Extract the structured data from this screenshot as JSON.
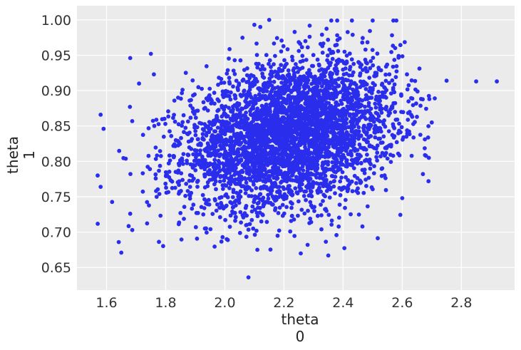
{
  "chart_data": {
    "type": "scatter",
    "title": "",
    "xlabel_lines": [
      "theta",
      "0"
    ],
    "ylabel_lines": [
      "theta",
      "1"
    ],
    "xlim": [
      1.5,
      2.98
    ],
    "ylim": [
      0.618,
      1.02
    ],
    "xticks": [
      1.6,
      1.8,
      2.0,
      2.2,
      2.4,
      2.6,
      2.8
    ],
    "xtick_labels": [
      "1.6",
      "1.8",
      "2.0",
      "2.2",
      "2.4",
      "2.6",
      "2.8"
    ],
    "yticks": [
      0.65,
      0.7,
      0.75,
      0.8,
      0.85,
      0.9,
      0.95,
      1.0
    ],
    "ytick_labels": [
      "0.65",
      "0.70",
      "0.75",
      "0.80",
      "0.85",
      "0.90",
      "0.95",
      "1.00"
    ],
    "grid": true,
    "background_color": "#ebebeb",
    "grid_color": "#ffffff",
    "marker_color": "#2a2eec",
    "bulk_distribution": {
      "n_points": 4000,
      "x_mean": 2.22,
      "x_sd": 0.18,
      "y_mean": 0.838,
      "y_sd": 0.052,
      "correlation": 0.28
    },
    "notable_points": [
      {
        "x": 2.92,
        "y": 0.913
      },
      {
        "x": 2.85,
        "y": 0.913
      },
      {
        "x": 2.75,
        "y": 0.914
      },
      {
        "x": 2.71,
        "y": 0.889
      },
      {
        "x": 2.7,
        "y": 0.855
      },
      {
        "x": 2.69,
        "y": 0.805
      },
      {
        "x": 2.67,
        "y": 0.782
      },
      {
        "x": 2.6,
        "y": 0.748
      },
      {
        "x": 2.15,
        "y": 1.0
      },
      {
        "x": 2.36,
        "y": 0.999
      },
      {
        "x": 2.38,
        "y": 0.999
      },
      {
        "x": 2.43,
        "y": 0.999
      },
      {
        "x": 2.5,
        "y": 0.999
      },
      {
        "x": 2.57,
        "y": 0.999
      },
      {
        "x": 2.58,
        "y": 0.999
      },
      {
        "x": 2.1,
        "y": 0.993
      },
      {
        "x": 2.12,
        "y": 0.99
      },
      {
        "x": 2.08,
        "y": 0.636
      },
      {
        "x": 1.65,
        "y": 0.671
      },
      {
        "x": 2.35,
        "y": 0.667
      },
      {
        "x": 2.28,
        "y": 0.682
      },
      {
        "x": 2.11,
        "y": 0.675
      },
      {
        "x": 1.58,
        "y": 0.866
      },
      {
        "x": 1.59,
        "y": 0.846
      },
      {
        "x": 1.58,
        "y": 0.764
      },
      {
        "x": 1.57,
        "y": 0.78
      },
      {
        "x": 1.68,
        "y": 0.946
      },
      {
        "x": 1.75,
        "y": 0.952
      },
      {
        "x": 1.68,
        "y": 0.726
      },
      {
        "x": 1.71,
        "y": 0.91
      },
      {
        "x": 1.76,
        "y": 0.923
      }
    ]
  }
}
